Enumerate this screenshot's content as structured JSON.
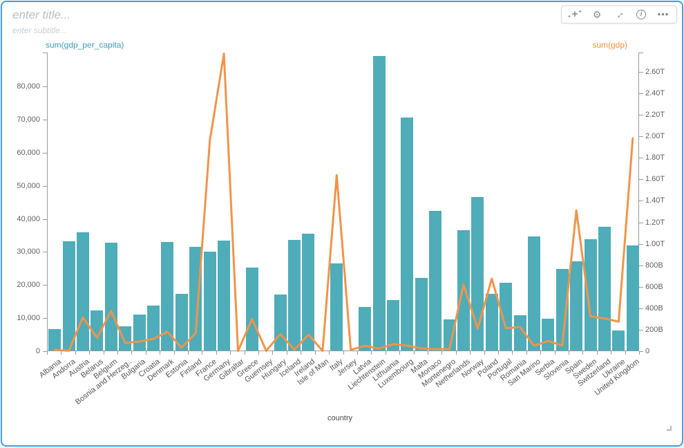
{
  "card": {
    "title_placeholder": "enter title...",
    "subtitle_placeholder": "enter subtitle..."
  },
  "toolbar": {
    "sparkle_glyph": "+",
    "gear_glyph": "⚙",
    "expand_glyph": "↔",
    "info_glyph": "i",
    "more_glyph": "•••"
  },
  "chart_data": {
    "type": "bar+line",
    "xlabel": "country",
    "grid": false,
    "legend_position": "none",
    "categories": [
      "Albania",
      "Andorra",
      "Austria",
      "Belarus",
      "Belgium",
      "Bosnia and Herzeg..",
      "Bulgaria",
      "Croatia",
      "Denmark",
      "Estonia",
      "Finland",
      "France",
      "Germany",
      "Gibraltar",
      "Greece",
      "Guernsey",
      "Hungary",
      "Iceland",
      "Ireland",
      "Isle of Man",
      "Italy",
      "Jersey",
      "Latvia",
      "Liechtenstein",
      "Lithuania",
      "Luxembourg",
      "Malta",
      "Monaco",
      "Montenegro",
      "Netherlands",
      "Norway",
      "Poland",
      "Portugal",
      "Romania",
      "San Marino",
      "Serbia",
      "Slovenia",
      "Spain",
      "Sweden",
      "Switzerland",
      "Ukraine",
      "United Kingdom"
    ],
    "series": [
      {
        "name": "sum(gdp_per_capita)",
        "type": "bar",
        "axis": "left",
        "color": "#4FACB9",
        "title_color": "#3D9FB2",
        "values": [
          6500,
          33000,
          35800,
          12200,
          32700,
          7400,
          10900,
          13650,
          32900,
          17100,
          31300,
          29800,
          33200,
          0,
          25000,
          0,
          16900,
          33400,
          35300,
          0,
          26400,
          0,
          13200,
          89000,
          15300,
          70400,
          21900,
          42200,
          9400,
          36300,
          46500,
          17200,
          20400,
          10700,
          34400,
          9700,
          24600,
          26900,
          33600,
          37400,
          6100,
          31700
        ]
      },
      {
        "name": "sum(gdp)",
        "type": "line",
        "axis": "right",
        "color": "#F0944A",
        "title_color": "#F6923C",
        "values_billions": [
          13,
          4,
          315,
          125,
          375,
          75,
          90,
          115,
          180,
          32,
          170,
          1960,
          2770,
          2,
          300,
          3,
          160,
          14,
          155,
          3,
          1640,
          13,
          50,
          26,
          65,
          52,
          26,
          19,
          19,
          620,
          210,
          675,
          213,
          225,
          50,
          95,
          52,
          1310,
          325,
          305,
          275,
          1980
        ]
      }
    ],
    "left_axis": {
      "max": 90300,
      "tick_values": [
        0,
        10000,
        20000,
        30000,
        40000,
        50000,
        60000,
        70000,
        80000
      ],
      "tick_labels": [
        "0",
        "10,000",
        "20,000",
        "30,000",
        "40,000",
        "50,000",
        "60,000",
        "70,000",
        "80,000"
      ]
    },
    "right_axis": {
      "max_billions": 2780,
      "tick_values_billions": [
        0,
        200,
        400,
        600,
        800,
        1000,
        1200,
        1400,
        1600,
        1800,
        2000,
        2200,
        2400,
        2600
      ],
      "tick_labels": [
        "0",
        "200B",
        "400B",
        "600B",
        "800B",
        "1.00T",
        "1.20T",
        "1.40T",
        "1.60T",
        "1.80T",
        "2.00T",
        "2.20T",
        "2.40T",
        "2.60T"
      ]
    }
  }
}
